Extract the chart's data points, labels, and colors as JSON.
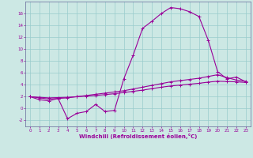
{
  "xlabel": "Windchill (Refroidissement éolien,°C)",
  "background_color": "#cce8e4",
  "grid_color": "#99cccc",
  "line_color": "#990099",
  "spine_color": "#666699",
  "xlim": [
    -0.5,
    23.5
  ],
  "ylim": [
    -3.0,
    18.0
  ],
  "xticks": [
    0,
    1,
    2,
    3,
    4,
    5,
    6,
    7,
    8,
    9,
    10,
    11,
    12,
    13,
    14,
    15,
    16,
    17,
    18,
    19,
    20,
    21,
    22,
    23
  ],
  "yticks": [
    -2,
    0,
    2,
    4,
    6,
    8,
    10,
    12,
    14,
    16
  ],
  "line1_x": [
    0,
    1,
    2,
    3,
    4,
    5,
    6,
    7,
    8,
    9,
    10,
    11,
    12,
    13,
    14,
    15,
    16,
    17,
    18,
    19,
    20,
    21,
    22,
    23
  ],
  "line1_y": [
    2.0,
    1.5,
    1.3,
    1.7,
    -1.7,
    -0.8,
    -0.5,
    0.7,
    -0.5,
    -0.3,
    5.0,
    9.0,
    13.5,
    14.7,
    16.0,
    17.0,
    16.8,
    16.3,
    15.5,
    11.5,
    6.2,
    5.0,
    5.3,
    4.5
  ],
  "line2_x": [
    0,
    1,
    2,
    3,
    4,
    5,
    6,
    7,
    8,
    9,
    10,
    11,
    12,
    13,
    14,
    15,
    16,
    17,
    18,
    19,
    20,
    21,
    22,
    23
  ],
  "line2_y": [
    2.0,
    1.8,
    1.6,
    1.7,
    1.8,
    2.0,
    2.2,
    2.4,
    2.6,
    2.8,
    3.0,
    3.3,
    3.6,
    3.9,
    4.2,
    4.5,
    4.7,
    4.9,
    5.1,
    5.4,
    5.7,
    5.2,
    4.8,
    4.6
  ],
  "line3_x": [
    0,
    1,
    2,
    3,
    4,
    5,
    6,
    7,
    8,
    9,
    10,
    11,
    12,
    13,
    14,
    15,
    16,
    17,
    18,
    19,
    20,
    21,
    22,
    23
  ],
  "line3_y": [
    2.0,
    1.9,
    1.8,
    1.85,
    1.9,
    2.0,
    2.1,
    2.2,
    2.35,
    2.5,
    2.7,
    2.9,
    3.1,
    3.35,
    3.6,
    3.8,
    3.95,
    4.1,
    4.25,
    4.45,
    4.6,
    4.55,
    4.5,
    4.4
  ]
}
